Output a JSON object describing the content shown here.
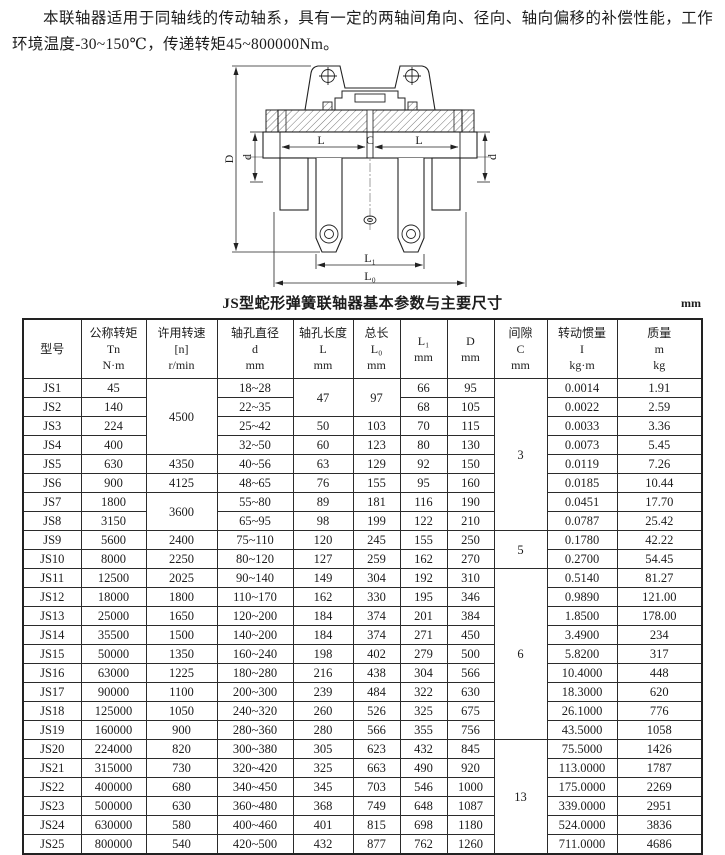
{
  "intro": {
    "text": "本联轴器适用于同轴线的传动轴系，具有一定的两轴间角向、径向、轴向偏移的补偿性能，工作环境温度-30~150℃，传递转矩45~800000Nm。"
  },
  "diagram": {
    "labels": {
      "outer_diameter": "D",
      "bore_left": "d",
      "bore_right": "d",
      "length_left": "L",
      "gap": "C",
      "length_right": "L",
      "l1": "L₁",
      "l0": "L₀"
    }
  },
  "table": {
    "title": "JS型蛇形弹簧联轴器基本参数与主要尺寸",
    "unit": "mm",
    "headers": [
      {
        "key": "model",
        "lines": [
          "型号"
        ]
      },
      {
        "key": "torque",
        "lines": [
          "公称转矩",
          "Tn",
          "N·m"
        ]
      },
      {
        "key": "speed",
        "lines": [
          "许用转速",
          "[n]",
          "r/min"
        ]
      },
      {
        "key": "bore-diameter",
        "lines": [
          "轴孔直径",
          "d",
          "mm"
        ]
      },
      {
        "key": "bore-length",
        "lines": [
          "轴孔长度",
          "L",
          "mm"
        ]
      },
      {
        "key": "total-length",
        "lines": [
          "总长",
          "L₀",
          "mm"
        ]
      },
      {
        "key": "l1",
        "lines": [
          "L₁",
          "mm"
        ]
      },
      {
        "key": "d",
        "lines": [
          "D",
          "mm"
        ]
      },
      {
        "key": "gap",
        "lines": [
          "间隙",
          "C",
          "mm"
        ]
      },
      {
        "key": "inertia",
        "lines": [
          "转动惯量",
          "I",
          "kg·m"
        ]
      },
      {
        "key": "mass",
        "lines": [
          "质量",
          "m",
          "kg"
        ]
      }
    ],
    "merges": [
      {
        "row": 0,
        "col": 2,
        "span": 4
      },
      {
        "row": 6,
        "col": 2,
        "span": 2
      },
      {
        "row": 0,
        "col": 4,
        "span": 2
      },
      {
        "row": 0,
        "col": 5,
        "span": 2
      },
      {
        "row": 0,
        "col": 8,
        "span": 8
      },
      {
        "row": 8,
        "col": 8,
        "span": 2
      },
      {
        "row": 10,
        "col": 8,
        "span": 9
      },
      {
        "row": 19,
        "col": 8,
        "span": 6
      }
    ],
    "rows": [
      [
        "JS1",
        "45",
        "4500",
        "18~28",
        "47",
        "97",
        "66",
        "95",
        "3",
        "0.0014",
        "1.91"
      ],
      [
        "JS2",
        "140",
        null,
        "22~35",
        null,
        null,
        "68",
        "105",
        null,
        "0.0022",
        "2.59"
      ],
      [
        "JS3",
        "224",
        null,
        "25~42",
        "50",
        "103",
        "70",
        "115",
        null,
        "0.0033",
        "3.36"
      ],
      [
        "JS4",
        "400",
        null,
        "32~50",
        "60",
        "123",
        "80",
        "130",
        null,
        "0.0073",
        "5.45"
      ],
      [
        "JS5",
        "630",
        "4350",
        "40~56",
        "63",
        "129",
        "92",
        "150",
        null,
        "0.0119",
        "7.26"
      ],
      [
        "JS6",
        "900",
        "4125",
        "48~65",
        "76",
        "155",
        "95",
        "160",
        null,
        "0.0185",
        "10.44"
      ],
      [
        "JS7",
        "1800",
        "3600",
        "55~80",
        "89",
        "181",
        "116",
        "190",
        null,
        "0.0451",
        "17.70"
      ],
      [
        "JS8",
        "3150",
        null,
        "65~95",
        "98",
        "199",
        "122",
        "210",
        null,
        "0.0787",
        "25.42"
      ],
      [
        "JS9",
        "5600",
        "2400",
        "75~110",
        "120",
        "245",
        "155",
        "250",
        "5",
        "0.1780",
        "42.22"
      ],
      [
        "JS10",
        "8000",
        "2250",
        "80~120",
        "127",
        "259",
        "162",
        "270",
        null,
        "0.2700",
        "54.45"
      ],
      [
        "JS11",
        "12500",
        "2025",
        "90~140",
        "149",
        "304",
        "192",
        "310",
        "6",
        "0.5140",
        "81.27"
      ],
      [
        "JS12",
        "18000",
        "1800",
        "110~170",
        "162",
        "330",
        "195",
        "346",
        null,
        "0.9890",
        "121.00"
      ],
      [
        "JS13",
        "25000",
        "1650",
        "120~200",
        "184",
        "374",
        "201",
        "384",
        null,
        "1.8500",
        "178.00"
      ],
      [
        "JS14",
        "35500",
        "1500",
        "140~200",
        "184",
        "374",
        "271",
        "450",
        null,
        "3.4900",
        "234"
      ],
      [
        "JS15",
        "50000",
        "1350",
        "160~240",
        "198",
        "402",
        "279",
        "500",
        null,
        "5.8200",
        "317"
      ],
      [
        "JS16",
        "63000",
        "1225",
        "180~280",
        "216",
        "438",
        "304",
        "566",
        null,
        "10.4000",
        "448"
      ],
      [
        "JS17",
        "90000",
        "1100",
        "200~300",
        "239",
        "484",
        "322",
        "630",
        null,
        "18.3000",
        "620"
      ],
      [
        "JS18",
        "125000",
        "1050",
        "240~320",
        "260",
        "526",
        "325",
        "675",
        null,
        "26.1000",
        "776"
      ],
      [
        "JS19",
        "160000",
        "900",
        "280~360",
        "280",
        "566",
        "355",
        "756",
        null,
        "43.5000",
        "1058"
      ],
      [
        "JS20",
        "224000",
        "820",
        "300~380",
        "305",
        "623",
        "432",
        "845",
        "13",
        "75.5000",
        "1426"
      ],
      [
        "JS21",
        "315000",
        "730",
        "320~420",
        "325",
        "663",
        "490",
        "920",
        null,
        "113.0000",
        "1787"
      ],
      [
        "JS22",
        "400000",
        "680",
        "340~450",
        "345",
        "703",
        "546",
        "1000",
        null,
        "175.0000",
        "2269"
      ],
      [
        "JS23",
        "500000",
        "630",
        "360~480",
        "368",
        "749",
        "648",
        "1087",
        null,
        "339.0000",
        "2951"
      ],
      [
        "JS24",
        "630000",
        "580",
        "400~460",
        "401",
        "815",
        "698",
        "1180",
        null,
        "524.0000",
        "3836"
      ],
      [
        "JS25",
        "800000",
        "540",
        "420~500",
        "432",
        "877",
        "762",
        "1260",
        null,
        "711.0000",
        "4686"
      ]
    ]
  }
}
